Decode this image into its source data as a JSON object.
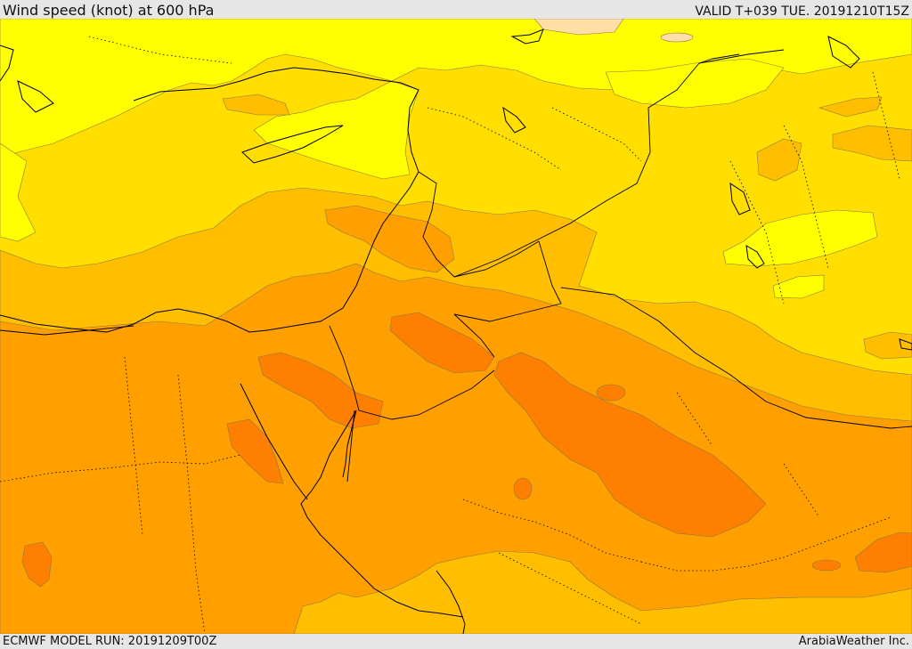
{
  "header": {
    "title": "Wind speed (knot) at 600 hPa",
    "valid": "VALID T+039 TUE. 20191210T15Z"
  },
  "footer": {
    "model_run": "ECMWF MODEL RUN: 20191209T00Z",
    "credit": "ArabiaWeather Inc."
  },
  "map": {
    "fill_colors": {
      "lightest": "#ffff00",
      "light": "#ffde00",
      "medium": "#ffbf00",
      "strong": "#ff9f00",
      "stronger": "#ff7f00",
      "calm": "#ffdfa8"
    },
    "border_color": "#000000"
  }
}
